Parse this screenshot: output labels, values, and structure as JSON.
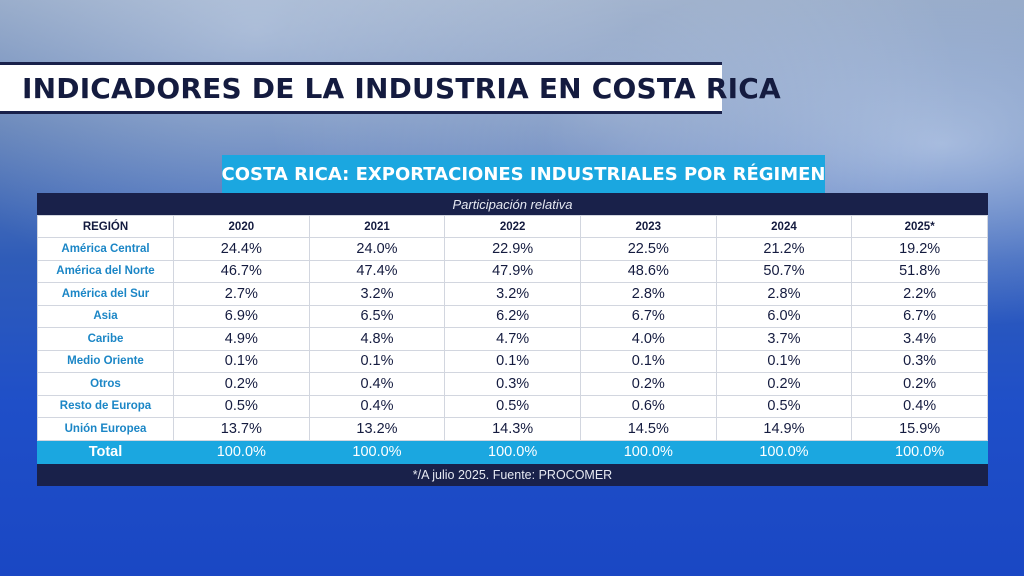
{
  "title": "INDICADORES DE LA INDUSTRIA EN COSTA RICA",
  "subtitle": "COSTA RICA: EXPORTACIONES INDUSTRIALES POR RÉGIMEN",
  "table": {
    "caption": "Participación relativa",
    "headers": [
      "REGIÓN",
      "2020",
      "2021",
      "2022",
      "2023",
      "2024",
      "2025*"
    ],
    "rows": [
      [
        "América Central",
        "24.4%",
        "24.0%",
        "22.9%",
        "22.5%",
        "21.2%",
        "19.2%"
      ],
      [
        "América del Norte",
        "46.7%",
        "47.4%",
        "47.9%",
        "48.6%",
        "50.7%",
        "51.8%"
      ],
      [
        "América del Sur",
        "2.7%",
        "3.2%",
        "3.2%",
        "2.8%",
        "2.8%",
        "2.2%"
      ],
      [
        "Asia",
        "6.9%",
        "6.5%",
        "6.2%",
        "6.7%",
        "6.0%",
        "6.7%"
      ],
      [
        "Caribe",
        "4.9%",
        "4.8%",
        "4.7%",
        "4.0%",
        "3.7%",
        "3.4%"
      ],
      [
        "Medio Oriente",
        "0.1%",
        "0.1%",
        "0.1%",
        "0.1%",
        "0.1%",
        "0.3%"
      ],
      [
        "Otros",
        "0.2%",
        "0.4%",
        "0.3%",
        "0.2%",
        "0.2%",
        "0.2%"
      ],
      [
        "Resto de Europa",
        "0.5%",
        "0.4%",
        "0.5%",
        "0.6%",
        "0.5%",
        "0.4%"
      ],
      [
        "Unión Europea",
        "13.7%",
        "13.2%",
        "14.3%",
        "14.5%",
        "14.9%",
        "15.9%"
      ]
    ],
    "total": [
      "Total",
      "100.0%",
      "100.0%",
      "100.0%",
      "100.0%",
      "100.0%",
      "100.0%"
    ],
    "footnote": "*/A julio 2025. Fuente: PROCOMER"
  },
  "colors": {
    "navy": "#19214a",
    "accent": "#1ba7e0",
    "region_text": "#1b86c6"
  }
}
